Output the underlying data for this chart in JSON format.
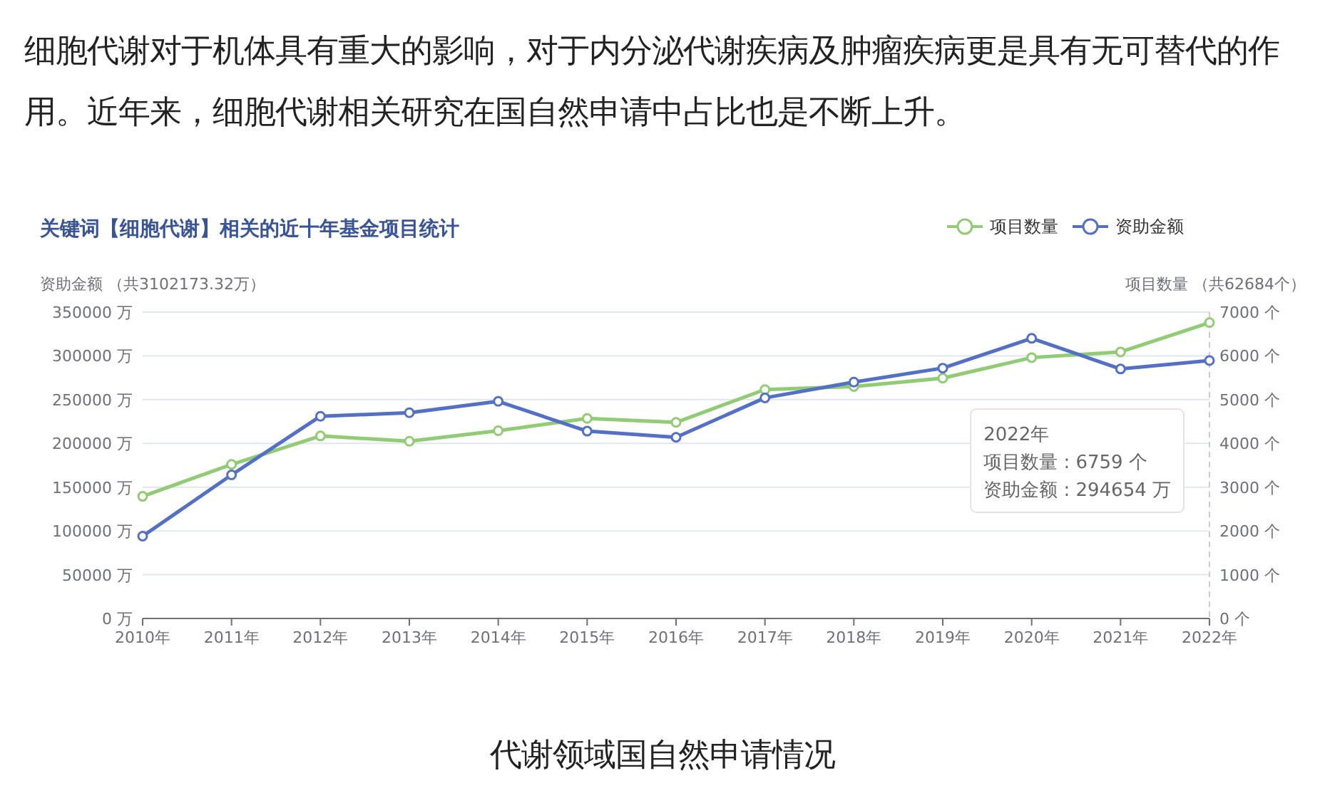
{
  "chart_data": {
    "type": "line",
    "title": "关键词【细胞代谢】相关的近十年基金项目统计",
    "ylabel": "资助金额 （共3102173.32万）",
    "y2label": "项目数量 （共62684个）",
    "categories": [
      "2010年",
      "2011年",
      "2012年",
      "2013年",
      "2014年",
      "2015年",
      "2016年",
      "2017年",
      "2018年",
      "2019年",
      "2020年",
      "2021年",
      "2022年"
    ],
    "series": [
      {
        "name": "项目数量",
        "color": "#91cc75",
        "axis": "y2",
        "values": [
          2790,
          3520,
          4170,
          4050,
          4290,
          4570,
          4480,
          5230,
          5300,
          5490,
          5960,
          6090,
          6759
        ]
      },
      {
        "name": "资助金额",
        "color": "#5470c6",
        "values": [
          94000,
          164000,
          231000,
          235000,
          248000,
          214000,
          207000,
          252000,
          270000,
          286000,
          320000,
          285000,
          294654
        ]
      }
    ],
    "ylim": [
      0,
      350000
    ],
    "yticks": [
      {
        "value": 0,
        "label": "0 万"
      },
      {
        "value": 50000,
        "label": "50000 万"
      },
      {
        "value": 100000,
        "label": "100000 万"
      },
      {
        "value": 150000,
        "label": "150000 万"
      },
      {
        "value": 200000,
        "label": "200000 万"
      },
      {
        "value": 250000,
        "label": "250000 万"
      },
      {
        "value": 300000,
        "label": "300000 万"
      },
      {
        "value": 350000,
        "label": "350000 万"
      }
    ],
    "y2lim": [
      0,
      7000
    ],
    "y2ticks": [
      {
        "value": 0,
        "label": "0 个"
      },
      {
        "value": 1000,
        "label": "1000 个"
      },
      {
        "value": 2000,
        "label": "2000 个"
      },
      {
        "value": 3000,
        "label": "3000 个"
      },
      {
        "value": 4000,
        "label": "4000 个"
      },
      {
        "value": 5000,
        "label": "5000 个"
      },
      {
        "value": 6000,
        "label": "6000 个"
      },
      {
        "value": 7000,
        "label": "7000 个"
      }
    ],
    "grid": "y",
    "legend": "top right",
    "marker": "circle",
    "ref_lines": [
      {
        "axis": "x",
        "value": "2022年",
        "color": "#cccccc",
        "line_style": "dashed"
      }
    ],
    "annotations": [
      "细胞代谢对于机体具有重大的影响，对于内分泌代谢疾病及肿瘤疾病更是具有无可替代的作用。近年来，细胞代谢相关研究在国自然申请中占比也是不断上升。",
      "代谢领域国自然申请情况",
      "2022年",
      "项目数量 : 6759 个",
      "资助金额 : 294654 万"
    ]
  }
}
